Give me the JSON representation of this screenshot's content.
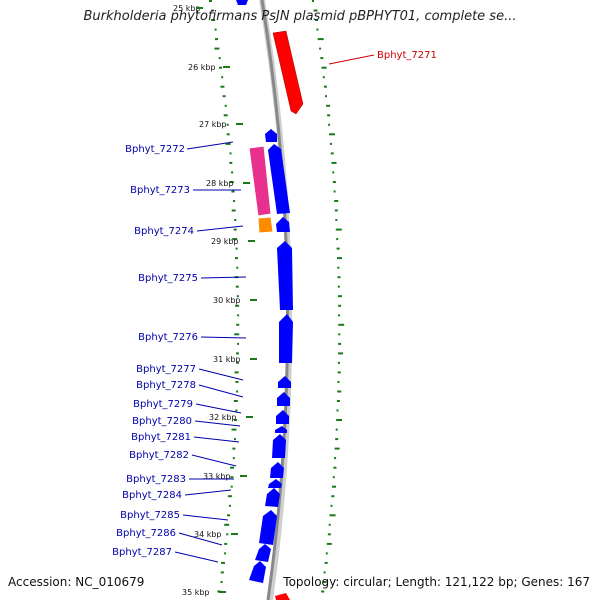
{
  "header": {
    "title": "Burkholderia phytofirmans PsJN plasmid pBPHYT01, complete se..."
  },
  "footer": {
    "accession": "Accession: NC_010679",
    "summary": "Topology: circular; Length: 121,122 bp; Genes: 167"
  },
  "scale": {
    "ticks": [
      "25 kbp",
      "26 kbp",
      "27 kbp",
      "28 kbp",
      "29 kbp",
      "30 kbp",
      "31 kbp",
      "32 kbp",
      "33 kbp",
      "34 kbp",
      "35 kbp"
    ]
  },
  "genes": [
    {
      "label": "Bphyt_7271",
      "color": "#cc0000"
    },
    {
      "label": "Bphyt_7272",
      "color": "#0000aa"
    },
    {
      "label": "Bphyt_7273",
      "color": "#0000aa"
    },
    {
      "label": "Bphyt_7274",
      "color": "#0000aa"
    },
    {
      "label": "Bphyt_7275",
      "color": "#0000aa"
    },
    {
      "label": "Bphyt_7276",
      "color": "#0000aa"
    },
    {
      "label": "Bphyt_7277",
      "color": "#0000aa"
    },
    {
      "label": "Bphyt_7278",
      "color": "#0000aa"
    },
    {
      "label": "Bphyt_7279",
      "color": "#0000aa"
    },
    {
      "label": "Bphyt_7280",
      "color": "#0000aa"
    },
    {
      "label": "Bphyt_7281",
      "color": "#0000aa"
    },
    {
      "label": "Bphyt_7282",
      "color": "#0000aa"
    },
    {
      "label": "Bphyt_7283",
      "color": "#0000aa"
    },
    {
      "label": "Bphyt_7284",
      "color": "#0000aa"
    },
    {
      "label": "Bphyt_7285",
      "color": "#0000aa"
    },
    {
      "label": "Bphyt_7286",
      "color": "#0000aa"
    },
    {
      "label": "Bphyt_7287",
      "color": "#0000aa"
    }
  ],
  "colors": {
    "forward_gene": "#ff0000",
    "reverse_gene": "#0000ff",
    "highlight_gene": "#e8308f",
    "other_gene": "#ff8c00",
    "backbone": "#888888",
    "gc_track": "#1a7a1a"
  }
}
